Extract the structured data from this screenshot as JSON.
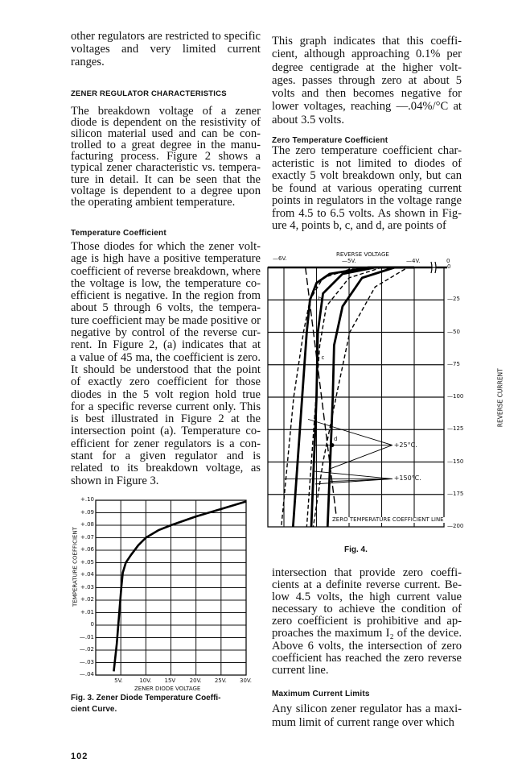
{
  "left_column": {
    "intro_lines": [
      "other regulators are restricted to specific",
      "voltages and very limited current",
      "ranges."
    ],
    "heading_1": "ZENER REGULATOR CHARACTERISTICS",
    "para_1_lines": [
      "The breakdown voltage of a zener",
      "diode is dependent on the resistivity of",
      "silicon material used and can be con-",
      "trolled to a great degree in the manu-",
      "facturing process. Figure 2 shows a",
      "typical zener characteristic vs. tempera-",
      "ture in detail. It can be seen that the",
      "voltage is dependent to a degree upon",
      "the operating ambient temperature."
    ],
    "heading_2": "Temperature Coefficient",
    "para_2_lines": [
      "Those diodes for which the zener volt-",
      "age is high have a positive temperature",
      "coefficient of reverse breakdown, where",
      "the voltage is low, the temperature co-",
      "efficient is negative. In the region from",
      "about 5 through 6 volts, the tempera-",
      "ture coefficient may be made positive or",
      "negative by control of the reverse cur-",
      "rent. In Figure 2, (a) indicates that at",
      "a value of 45 ma, the coefficient is zero.",
      "It should be understood that the point",
      "of exactly zero coefficient for those",
      "diodes in the 5 volt region hold true",
      "for a specific reverse current only. This",
      "is best illustrated in Figure 2 at the",
      "intersection point (a). Temperature co-",
      "efficient for zener regulators is a con-",
      "stant for a given regulator and is",
      "related to its breakdown voltage, as",
      "shown in Figure 3."
    ],
    "fig3_caption_lines": [
      "Fig. 3. Zener Diode Temperature Coeffi-",
      "cient Curve."
    ],
    "page_number": "102"
  },
  "right_column": {
    "para_1_lines": [
      "This graph indicates that this coeffi-",
      "cient, although approaching 0.1% per",
      "degree centigrade at the higher volt-",
      "ages. passes through zero at about 5",
      "volts and then becomes negative for",
      "lower voltages, reaching —.04%/°C at",
      "about 3.5 volts."
    ],
    "heading_3": "Zero Temperature Coefficient",
    "para_2_lines": [
      "The zero temperature coefficient char-",
      "acteristic is not limited to diodes of",
      "exactly 5 volt breakdown only, but can",
      "be found at various operating current",
      "points in regulators in the voltage range",
      "from 4.5 to 6.5 volts. As shown in Fig-",
      "ure 4, points b, c, and d, are points of"
    ],
    "fig4_caption": "Fig. 4.",
    "para_3_lines": [
      "intersection that provide zero coeffi-",
      "cients at a definite reverse current. Be-",
      "low 4.5 volts, the high current value",
      "necessary to achieve the condition of",
      "zero coefficient is prohibitive and ap-",
      "proaches the maximum I₂ of the device.",
      "Above 6 volts, the intersection of zero",
      "coefficient has reached the zero reverse",
      "current line."
    ],
    "heading_4": "Maximum Current Limits",
    "para_4_lines": [
      "Any silicon zener regulator has a maxi-",
      "mum limit of current range over which"
    ]
  },
  "chart_data": [
    {
      "type": "line",
      "xlabel": "ZENER DIODE VOLTAGE",
      "ylabel": "TEMPERATURE COEFFICIENT",
      "xlim": [
        0,
        30
      ],
      "ylim": [
        -0.04,
        0.1
      ],
      "grid": true,
      "x_tick_labels": [
        "5V.",
        "10V.",
        "15V",
        "20V.",
        "25V.",
        "30V."
      ],
      "x_ticks": [
        5,
        10,
        15,
        20,
        25,
        30
      ],
      "y_tick_labels": [
        "+.10",
        "+.09",
        "+.08",
        "+.07",
        "+.06",
        "+.05",
        "+.04",
        "+.03",
        "+.02",
        "+.01",
        "0",
        "—.01",
        "—.02",
        "—.03",
        "—.04"
      ],
      "y_ticks": [
        0.1,
        0.09,
        0.08,
        0.07,
        0.06,
        0.05,
        0.04,
        0.03,
        0.02,
        0.01,
        0,
        -0.01,
        -0.02,
        -0.03,
        -0.04
      ],
      "series": [
        {
          "x": [
            3.6,
            4.2,
            4.7,
            5.1,
            5.4,
            6.0,
            7.0,
            8.5,
            10,
            12.5,
            15,
            20,
            25,
            30
          ],
          "y": [
            -0.037,
            -0.015,
            0.01,
            0.03,
            0.042,
            0.05,
            0.056,
            0.064,
            0.07,
            0.076,
            0.08,
            0.087,
            0.093,
            0.099
          ]
        }
      ]
    },
    {
      "type": "line",
      "xlabel": "REVERSE VOLTAGE",
      "ylabel": "REVERSE CURRENT",
      "xlim": [
        -6.25,
        0
      ],
      "ylim": [
        -200,
        0
      ],
      "grid": true,
      "x_tick_labels": [
        "—6V.",
        "—5V.",
        "—4V.",
        "0"
      ],
      "x_ticks": [
        -6,
        -5,
        -4,
        0
      ],
      "y_tick_labels": [
        "0",
        "—25",
        "—50",
        "—75",
        "—100",
        "—125",
        "—150",
        "—175",
        "—200"
      ],
      "y_ticks": [
        0,
        -25,
        -50,
        -75,
        -100,
        -125,
        -150,
        -175,
        -200
      ],
      "series": [
        {
          "style": "solid",
          "x": [
            -4.0,
            -4.7,
            -5.3,
            -5.5,
            -5.6,
            -5.65,
            -5.72,
            -5.86
          ],
          "y": [
            0,
            0,
            -5,
            -12,
            -25,
            -50,
            -100,
            -200
          ]
        },
        {
          "style": "dashed",
          "x": [
            -4.2,
            -4.9,
            -5.4,
            -5.6,
            -5.7,
            -5.85,
            -6.04
          ],
          "y": [
            0,
            0,
            -8,
            -25,
            -50,
            -100,
            -200
          ]
        },
        {
          "style": "solid",
          "x": [
            -4.0,
            -4.6,
            -5.1,
            -5.4,
            -5.48,
            -5.5,
            -5.58
          ],
          "y": [
            0,
            0,
            -5,
            -20,
            -50,
            -100,
            -200
          ]
        },
        {
          "style": "dashed",
          "x": [
            -4.0,
            -4.5,
            -5.0,
            -5.35,
            -5.45,
            -5.55,
            -5.65
          ],
          "y": [
            0,
            0,
            -8,
            -30,
            -60,
            -130,
            -200
          ]
        },
        {
          "style": "solid",
          "x": [
            -4.0,
            -4.3,
            -4.8,
            -5.1,
            -5.23,
            -5.25,
            -5.33
          ],
          "y": [
            0,
            0,
            -8,
            -30,
            -60,
            -100,
            -200
          ]
        },
        {
          "style": "dashed",
          "x": [
            -3.95,
            -4.1,
            -4.6,
            -4.99,
            -5.2,
            -5.4,
            -5.55
          ],
          "y": [
            0,
            0,
            -15,
            -50,
            -100,
            -150,
            -200
          ]
        }
      ],
      "zero_coefficient_line": {
        "label": "ZERO TEMPERATURE COEFFICIENT LINE",
        "x": [
          -5.67,
          -5.2
        ],
        "y": [
          0,
          -190
        ]
      },
      "point_labels": [
        {
          "text": "b",
          "x": -5.5,
          "y": -25
        },
        {
          "text": "c",
          "x": -5.45,
          "y": -70
        },
        {
          "text": "d",
          "x": -5.26,
          "y": -133
        }
      ],
      "annotations": [
        {
          "text": "+25°C.",
          "x": -4.3,
          "y": -137,
          "targets": [
            [
              -5.63,
              -117
            ],
            [
              -5.55,
              -137
            ],
            [
              -5.28,
              -155
            ]
          ]
        },
        {
          "text": "+150°C.",
          "x": -4.3,
          "y": -163,
          "targets": [
            [
              -5.99,
              -163
            ],
            [
              -5.56,
              -157
            ],
            [
              -5.52,
              -167
            ],
            [
              -5.3,
              -165
            ]
          ]
        }
      ]
    }
  ]
}
